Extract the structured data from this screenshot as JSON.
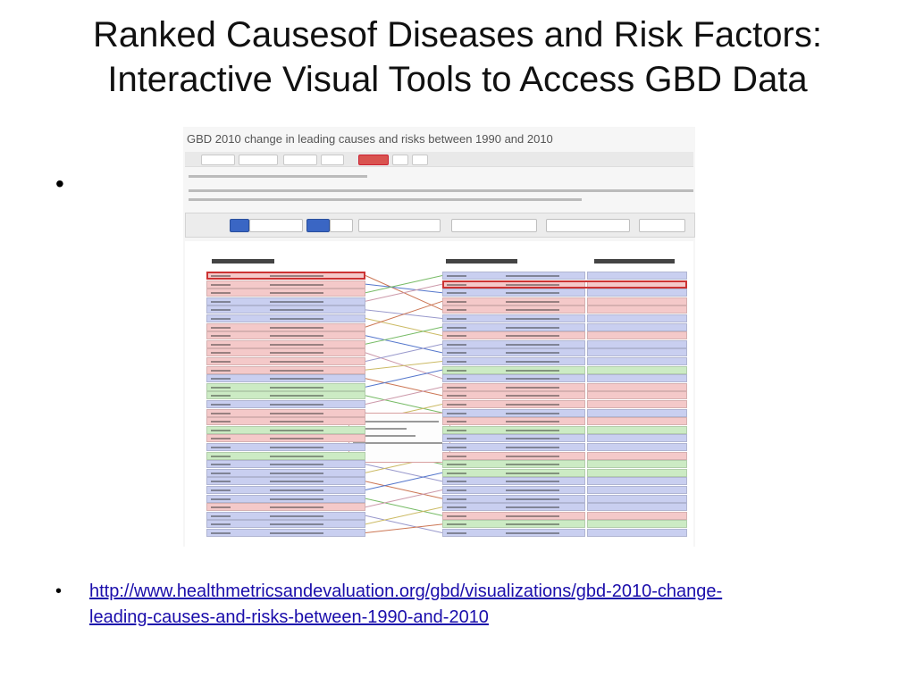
{
  "slide": {
    "title_line1": "Ranked Causesof Diseases and Risk Factors:",
    "title_line2": "Interactive Visual Tools to Access GBD Data",
    "bullet_symbol": "•"
  },
  "screenshot": {
    "title": "GBD 2010 change in leading causes and risks between 1990 and 2010",
    "row_colors": {
      "communicable": "#f4c9c9",
      "non_communicable": "#c9cff0",
      "injuries": "#ccebc4"
    }
  },
  "source_link": {
    "url_line1": "http://www.healthmetricsandevaluation.org/gbd/visualizations/gbd-2010-change-",
    "url_line2": "leading-causes-and-risks-between-1990-and-2010"
  }
}
